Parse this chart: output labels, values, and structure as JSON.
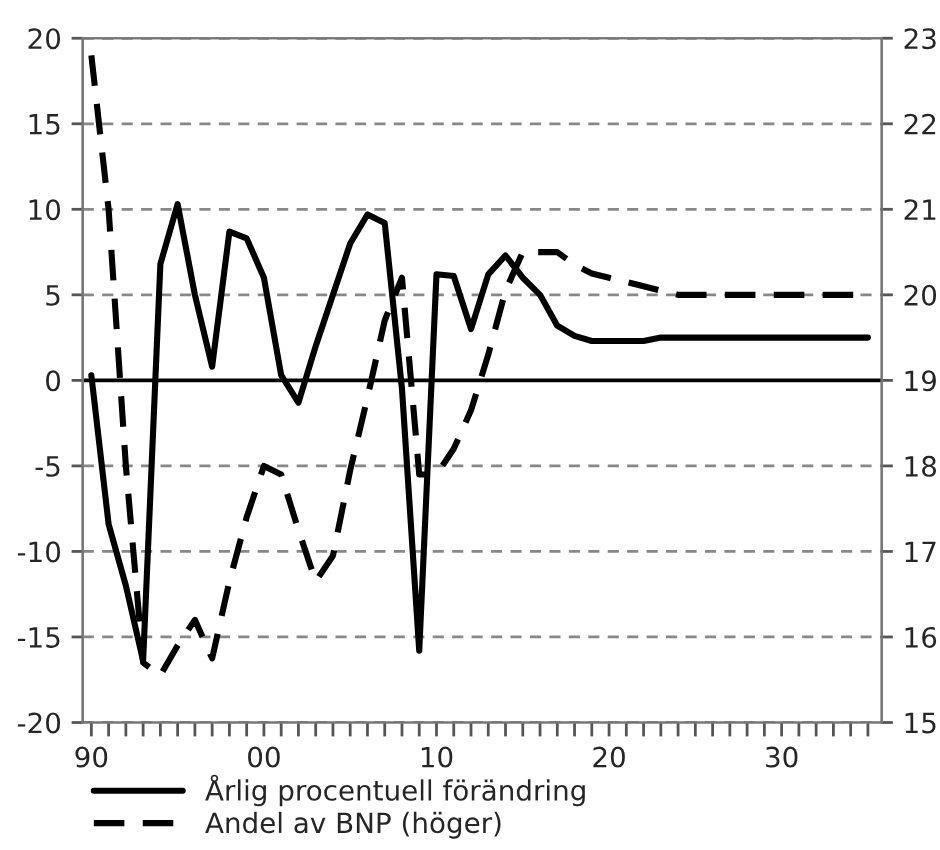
{
  "chart_data": {
    "type": "line",
    "x": [
      1990,
      1991,
      1992,
      1993,
      1994,
      1995,
      1996,
      1997,
      1998,
      1999,
      2000,
      2001,
      2002,
      2003,
      2004,
      2005,
      2006,
      2007,
      2008,
      2009,
      2010,
      2011,
      2012,
      2013,
      2014,
      2015,
      2016,
      2017,
      2018,
      2019,
      2020,
      2021,
      2022,
      2023,
      2024,
      2025,
      2026,
      2027,
      2028,
      2029,
      2030,
      2031,
      2032,
      2033,
      2034,
      2035
    ],
    "series": [
      {
        "name": "Årlig procentuell förändring",
        "color": "#000000",
        "line_style": "solid",
        "values": [
          0.3,
          -8.4,
          -12,
          -16.4,
          6.8,
          10.3,
          5,
          0.8,
          8.7,
          8.3,
          6,
          0.3,
          -1.3,
          2,
          5,
          8,
          9.7,
          9.2,
          -0.5,
          -15.8,
          6.2,
          6.1,
          3,
          6.2,
          7.3,
          6,
          5,
          3.2,
          2.6,
          2.3,
          2.3,
          2.3,
          2.3,
          2.5,
          2.5,
          2.5,
          2.5,
          2.5,
          2.5,
          2.5,
          2.5,
          2.5,
          2.5,
          2.5,
          2.5,
          2.5
        ]
      },
      {
        "name": "Andel av BNP (höger)",
        "color": "#000000",
        "line_style": "dashed",
        "axis": "y2",
        "values": [
          22.8,
          21.0,
          18.0,
          15.7,
          15.55,
          15.9,
          16.2,
          15.75,
          16.65,
          17.4,
          18.0,
          17.9,
          17.25,
          16.65,
          16.95,
          17.95,
          18.8,
          19.7,
          20.2,
          17.9,
          17.9,
          18.2,
          18.65,
          19.3,
          20.05,
          20.5,
          20.5,
          20.5,
          20.35,
          20.25,
          20.2,
          20.15,
          20.1,
          20.05,
          20.0,
          20.0,
          20.0,
          20.0,
          20.0,
          20.0,
          20.0,
          20.0,
          20.0,
          20.0,
          20.0,
          20.0
        ]
      }
    ],
    "xlim": [
      1989.5,
      2035.8
    ],
    "xticks": [
      {
        "value": 1990,
        "label": "90"
      },
      {
        "value": 1991,
        "label": null
      },
      {
        "value": 1992,
        "label": null
      },
      {
        "value": 1993,
        "label": null
      },
      {
        "value": 1994,
        "label": null
      },
      {
        "value": 1995,
        "label": null
      },
      {
        "value": 1996,
        "label": null
      },
      {
        "value": 1997,
        "label": null
      },
      {
        "value": 1998,
        "label": null
      },
      {
        "value": 1999,
        "label": null
      },
      {
        "value": 2000,
        "label": "00"
      },
      {
        "value": 2001,
        "label": null
      },
      {
        "value": 2002,
        "label": null
      },
      {
        "value": 2003,
        "label": null
      },
      {
        "value": 2004,
        "label": null
      },
      {
        "value": 2005,
        "label": null
      },
      {
        "value": 2006,
        "label": null
      },
      {
        "value": 2007,
        "label": null
      },
      {
        "value": 2008,
        "label": null
      },
      {
        "value": 2009,
        "label": null
      },
      {
        "value": 2010,
        "label": "10"
      },
      {
        "value": 2011,
        "label": null
      },
      {
        "value": 2012,
        "label": null
      },
      {
        "value": 2013,
        "label": null
      },
      {
        "value": 2014,
        "label": null
      },
      {
        "value": 2015,
        "label": null
      },
      {
        "value": 2016,
        "label": null
      },
      {
        "value": 2017,
        "label": null
      },
      {
        "value": 2018,
        "label": null
      },
      {
        "value": 2019,
        "label": null
      },
      {
        "value": 2020,
        "label": "20"
      },
      {
        "value": 2021,
        "label": null
      },
      {
        "value": 2022,
        "label": null
      },
      {
        "value": 2023,
        "label": null
      },
      {
        "value": 2024,
        "label": null
      },
      {
        "value": 2025,
        "label": null
      },
      {
        "value": 2026,
        "label": null
      },
      {
        "value": 2027,
        "label": null
      },
      {
        "value": 2028,
        "label": null
      },
      {
        "value": 2029,
        "label": null
      },
      {
        "value": 2030,
        "label": "30"
      },
      {
        "value": 2031,
        "label": null
      },
      {
        "value": 2032,
        "label": null
      },
      {
        "value": 2033,
        "label": null
      },
      {
        "value": 2034,
        "label": null
      },
      {
        "value": 2035,
        "label": null
      }
    ],
    "ylim": [
      -20,
      20
    ],
    "yticks": [
      -20,
      -15,
      -10,
      -5,
      0,
      5,
      10,
      15,
      20
    ],
    "y2lim": [
      15,
      23
    ],
    "y2ticks": [
      15,
      16,
      17,
      18,
      19,
      20,
      21,
      22,
      23
    ],
    "ref_lines": [
      {
        "axis": "y",
        "value": 0,
        "color": "#000000",
        "line_style": "solid"
      }
    ],
    "grid": "y",
    "legend": "bottom",
    "marker": "none"
  }
}
